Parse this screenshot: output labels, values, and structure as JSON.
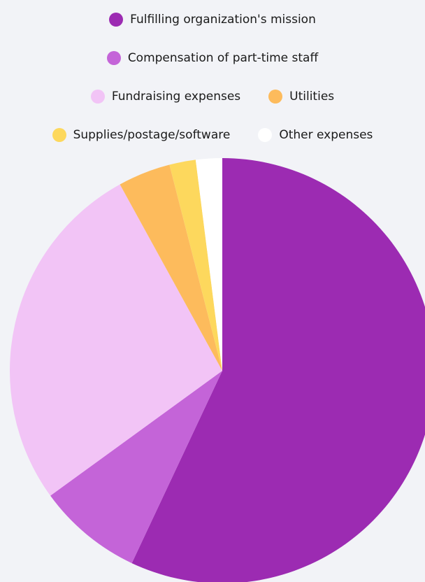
{
  "chart_data": {
    "type": "pie",
    "categories": [
      "Fulfilling organization's mission",
      "Compensation of part-time staff",
      "Fundraising expenses",
      "Utilities",
      "Supplies/postage/software",
      "Other expenses"
    ],
    "values": [
      57,
      8,
      27,
      4,
      2,
      2
    ],
    "colors": [
      "#9c2bb2",
      "#c464d8",
      "#f2c4f6",
      "#fdbb5c",
      "#fdd85d",
      "#ffffff"
    ],
    "legend": "top"
  }
}
